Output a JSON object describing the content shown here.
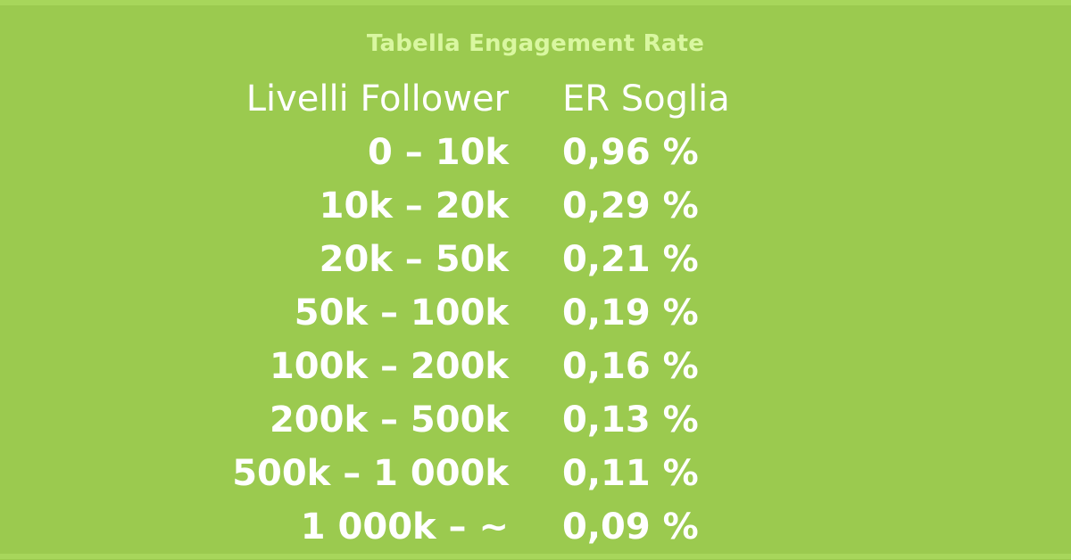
{
  "title": "Tabella Engagement Rate",
  "table": {
    "headers": {
      "left": "Livelli Follower",
      "right": "ER Soglia"
    },
    "rows": [
      {
        "range": "0 – 10k",
        "er": "0,96 %"
      },
      {
        "range": "10k – 20k",
        "er": "0,29 %"
      },
      {
        "range": "20k – 50k",
        "er": "0,21 %"
      },
      {
        "range": "50k – 100k",
        "er": "0,19 %"
      },
      {
        "range": "100k – 200k",
        "er": "0,16 %"
      },
      {
        "range": "200k – 500k",
        "er": "0,13 %"
      },
      {
        "range": "500k – 1 000k",
        "er": "0,11 %"
      },
      {
        "range": "1 000k – ~",
        "er": "0,09 %"
      }
    ]
  },
  "colors": {
    "background": "#9bca4f",
    "title": "#d9f7a0",
    "text": "#ffffff",
    "border": "#a7d65b"
  }
}
